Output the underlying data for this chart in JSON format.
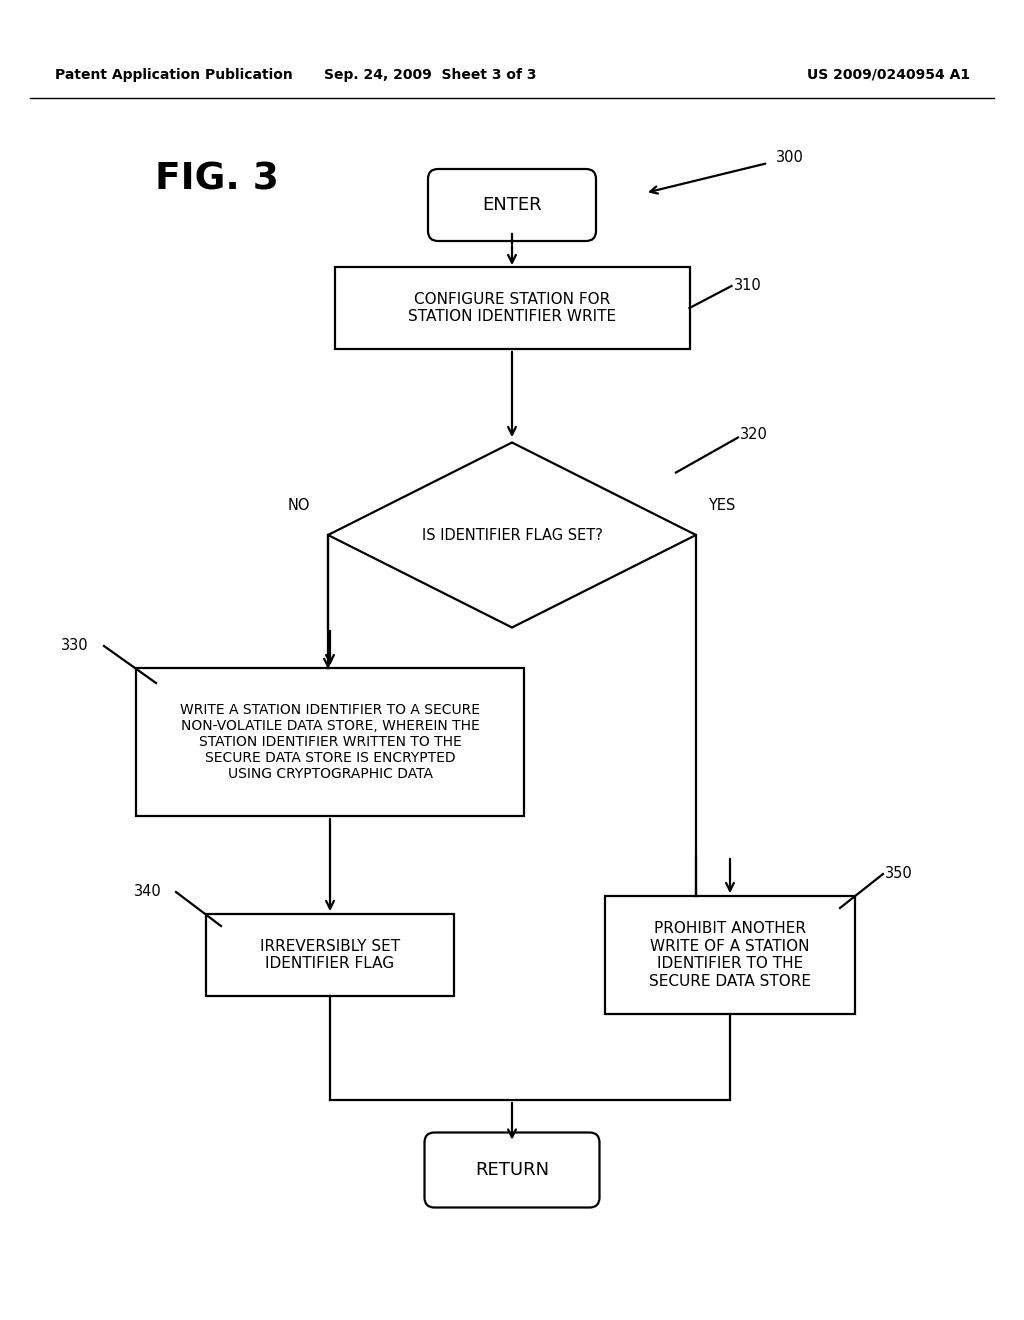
{
  "bg_color": "#ffffff",
  "header_left": "Patent Application Publication",
  "header_center": "Sep. 24, 2009  Sheet 3 of 3",
  "header_right": "US 2009/0240954 A1",
  "fig_label": "FIG. 3",
  "diagram_ref": "300",
  "enter_text": "ENTER",
  "box310_text": "CONFIGURE STATION FOR\nSTATION IDENTIFIER WRITE",
  "box310_label": "310",
  "diamond_text": "IS IDENTIFIER FLAG SET?",
  "diamond_label": "320",
  "no_label": "NO",
  "yes_label": "YES",
  "box330_text": "WRITE A STATION IDENTIFIER TO A SECURE\nNON-VOLATILE DATA STORE, WHEREIN THE\nSTATION IDENTIFIER WRITTEN TO THE\nSECURE DATA STORE IS ENCRYPTED\nUSING CRYPTOGRAPHIC DATA",
  "box330_label": "330",
  "box340_text": "IRREVERSIBLY SET\nIDENTIFIER FLAG",
  "box340_label": "340",
  "box350_text": "PROHIBIT ANOTHER\nWRITE OF A STATION\nIDENTIFIER TO THE\nSECURE DATA STORE",
  "box350_label": "350",
  "return_text": "RETURN",
  "lw": 1.6
}
